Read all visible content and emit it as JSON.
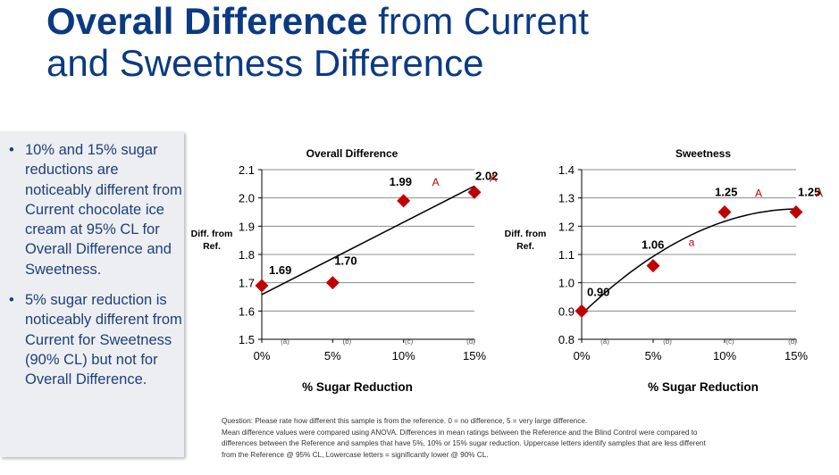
{
  "title": {
    "bold": "Overall Difference",
    "rest_line1": " from Current",
    "line2": "and Sweetness Difference"
  },
  "bullets": [
    "10% and 15% sugar reductions are noticeably different from Current chocolate ice cream at 95% CL for Overall Difference and Sweetness.",
    "5% sugar reduction is noticeably different from Current for Sweetness (90% CL) but not for Overall Difference."
  ],
  "colors": {
    "title": "#0b3a82",
    "bullet_text": "#1f3f7a",
    "marker": "#c00000",
    "sig_letter": "#c00000"
  },
  "chart_data": [
    {
      "type": "scatter",
      "title": "Overall Difference",
      "ylabel": "Diff. from Ref.",
      "xlabel": "% Sugar Reduction",
      "categories": [
        "0%",
        "5%",
        "10%",
        "15%"
      ],
      "x": [
        0,
        5,
        10,
        15
      ],
      "values": [
        1.69,
        1.7,
        1.99,
        2.02
      ],
      "data_labels": [
        "1.69",
        "1.70",
        "1.99",
        "2.02"
      ],
      "sig_letters_upper": [
        "",
        "",
        "A",
        "A"
      ],
      "sig_letters_lower": [
        "",
        "",
        "",
        ""
      ],
      "subgroup_letters": [
        "(a)",
        "(b)",
        "(c)",
        "(d)"
      ],
      "trendline": "linear",
      "ylim": [
        1.5,
        2.1
      ],
      "yticks": [
        1.5,
        1.6,
        1.7,
        1.8,
        1.9,
        2.0,
        2.1
      ],
      "ytick_labels": [
        "1.5",
        "1.6",
        "1.7",
        "1.8",
        "1.9",
        "2.0",
        "2.1"
      ],
      "grid": true
    },
    {
      "type": "scatter",
      "title": "Sweetness",
      "ylabel": "Diff. from Ref.",
      "xlabel": "% Sugar Reduction",
      "categories": [
        "0%",
        "5%",
        "10%",
        "15%"
      ],
      "x": [
        0,
        5,
        10,
        15
      ],
      "values": [
        0.9,
        1.06,
        1.25,
        1.25
      ],
      "data_labels": [
        "0.90",
        "1.06",
        "1.25",
        "1.25"
      ],
      "sig_letters_upper": [
        "",
        "",
        "A",
        "A"
      ],
      "sig_letters_lower": [
        "",
        "a",
        "",
        ""
      ],
      "subgroup_letters": [
        "(a)",
        "(b)",
        "(c)",
        "(d)"
      ],
      "trendline": "polynomial",
      "ylim": [
        0.8,
        1.4
      ],
      "yticks": [
        0.8,
        0.9,
        1.0,
        1.1,
        1.2,
        1.3,
        1.4
      ],
      "ytick_labels": [
        "0.8",
        "0.9",
        "1.0",
        "1.1",
        "1.2",
        "1.3",
        "1.4"
      ],
      "grid": true
    }
  ],
  "footnote": [
    "Question:  Please rate how different this sample is from the reference.  0 = no difference, 5 = very large difference.",
    "Mean difference values were compared using ANOVA.  Differences in mean ratings between the Reference and the Blind Control were compared to",
    "differences between the Reference and samples that have 5%, 10% or 15% sugar reduction.  Uppercase letters  identify samples that are less different",
    "from the Reference @ 95% CL, Lowercase letters = significantly lower @ 90% CL."
  ]
}
